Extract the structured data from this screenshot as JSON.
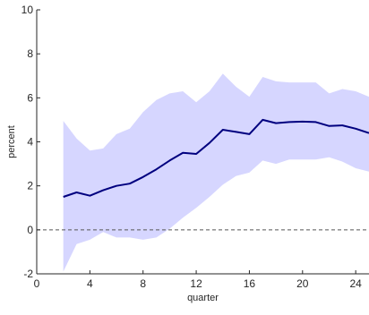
{
  "chart_data": {
    "type": "line",
    "title": "",
    "xlabel": "quarter",
    "ylabel": "percent",
    "xlim": [
      0,
      25
    ],
    "ylim": [
      -2,
      10
    ],
    "xticks": [
      0,
      4,
      8,
      12,
      16,
      20,
      24
    ],
    "yticks": [
      -2,
      0,
      2,
      4,
      6,
      8,
      10
    ],
    "grid": false,
    "legend": "none",
    "x": [
      2,
      3,
      4,
      5,
      6,
      7,
      8,
      9,
      10,
      11,
      12,
      13,
      14,
      15,
      16,
      17,
      18,
      19,
      20,
      21,
      22,
      23,
      24,
      25
    ],
    "series": [
      {
        "values": [
          1.5,
          1.7,
          1.55,
          1.8,
          2.0,
          2.1,
          2.4,
          2.75,
          3.15,
          3.5,
          3.45,
          3.95,
          4.55,
          4.45,
          4.35,
          5.0,
          4.85,
          4.9,
          4.92,
          4.9,
          4.72,
          4.75,
          4.6,
          4.4
        ],
        "lower": [
          -1.9,
          -0.65,
          -0.45,
          -0.1,
          -0.35,
          -0.35,
          -0.45,
          -0.35,
          0.05,
          0.55,
          1.0,
          1.5,
          2.05,
          2.45,
          2.6,
          3.15,
          3.0,
          3.2,
          3.2,
          3.2,
          3.3,
          3.1,
          2.8,
          2.65
        ],
        "upper": [
          4.95,
          4.15,
          3.6,
          3.7,
          4.35,
          4.6,
          5.35,
          5.9,
          6.2,
          6.3,
          5.8,
          6.3,
          7.1,
          6.5,
          6.05,
          6.95,
          6.75,
          6.7,
          6.7,
          6.7,
          6.2,
          6.4,
          6.3,
          6.05
        ]
      }
    ],
    "reference_line": {
      "y": 0,
      "style": "dashed"
    },
    "colors": {
      "line": "#00007f",
      "band": "#d6d6ff",
      "reference": "#555555",
      "axis": "#262626"
    }
  }
}
